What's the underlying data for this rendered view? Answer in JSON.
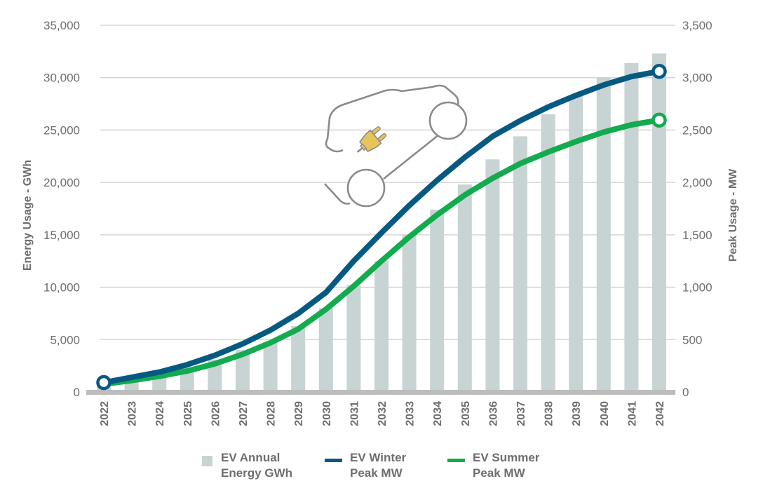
{
  "chart_data": {
    "type": "bar+line",
    "title": "",
    "categories": [
      "2022",
      "2023",
      "2024",
      "2025",
      "2026",
      "2027",
      "2028",
      "2029",
      "2030",
      "2031",
      "2032",
      "2033",
      "2034",
      "2035",
      "2036",
      "2037",
      "2038",
      "2039",
      "2040",
      "2041",
      "2042"
    ],
    "series": [
      {
        "name": "EV Annual Energy GWh",
        "type": "bar",
        "axis": "left",
        "color": "#c8d3d3",
        "values": [
          700,
          1000,
          1500,
          2300,
          3100,
          4000,
          4800,
          6300,
          8000,
          10200,
          12500,
          15000,
          17400,
          19800,
          22200,
          24400,
          26500,
          28300,
          30000,
          31400,
          32300
        ]
      },
      {
        "name": "EV Winter Peak MW",
        "type": "line",
        "axis": "right",
        "color": "#065a82",
        "values": [
          90,
          140,
          190,
          260,
          350,
          460,
          590,
          750,
          950,
          1250,
          1520,
          1780,
          2020,
          2240,
          2440,
          2590,
          2720,
          2830,
          2930,
          3010,
          3060
        ]
      },
      {
        "name": "EV Summer Peak MW",
        "type": "line",
        "axis": "right",
        "color": "#13ab4f",
        "values": [
          75,
          110,
          150,
          200,
          270,
          360,
          470,
          600,
          790,
          1010,
          1250,
          1480,
          1690,
          1880,
          2040,
          2180,
          2290,
          2390,
          2480,
          2550,
          2595
        ]
      }
    ],
    "ylabel": "Energy Usage - GWh",
    "ylabel_right": "Peak Usage - MW",
    "xlabel": "",
    "ylim": [
      0,
      35000
    ],
    "ylim_right": [
      0,
      3500
    ],
    "yticks": [
      "0",
      "5,000",
      "10,000",
      "15,000",
      "20,000",
      "25,000",
      "30,000",
      "35,000"
    ],
    "yticks_right": [
      "0",
      "500",
      "1,000",
      "1,500",
      "2,000",
      "2,500",
      "3,000",
      "3,500"
    ],
    "grid": true,
    "legend_position": "bottom",
    "legend": [
      {
        "label": "EV Annual\nEnergy GWh",
        "kind": "box",
        "color": "#c8d3d3"
      },
      {
        "label": "EV Winter\nPeak MW",
        "kind": "line",
        "color": "#065a82"
      },
      {
        "label": "EV Summer\nPeak MW",
        "kind": "line",
        "color": "#13ab4f"
      }
    ],
    "annotations": [
      {
        "kind": "icon",
        "name": "electric-car-with-plug",
        "colors": {
          "outline": "#8a8a8a",
          "plug": "#e8c55a"
        }
      }
    ]
  }
}
